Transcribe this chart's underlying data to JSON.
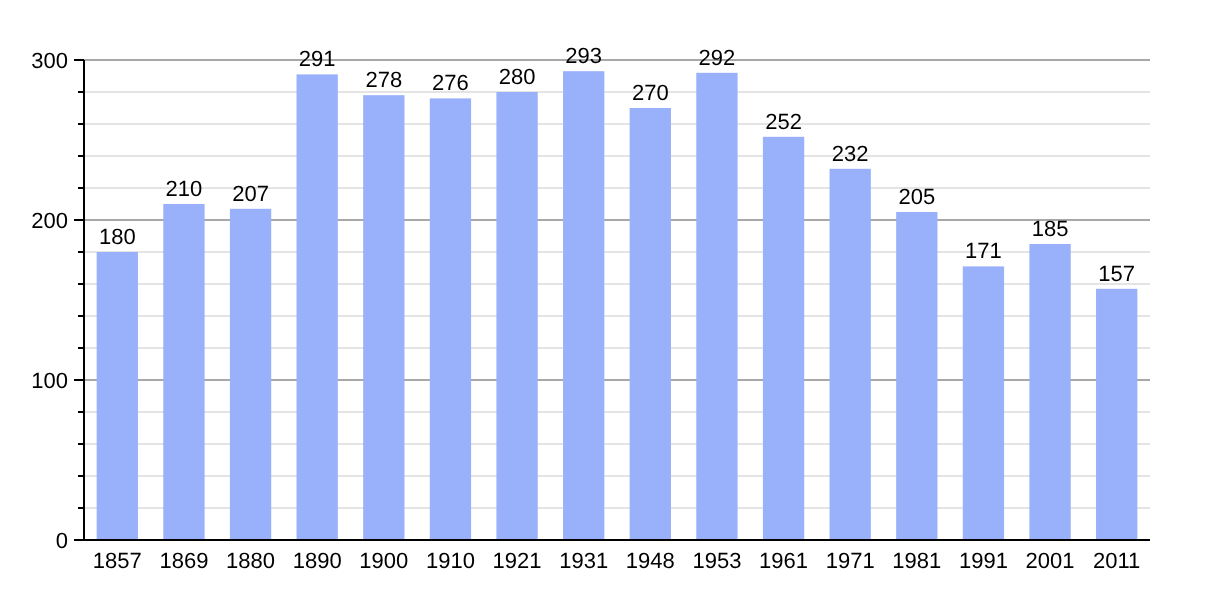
{
  "chart_data": {
    "type": "bar",
    "categories": [
      "1857",
      "1869",
      "1880",
      "1890",
      "1900",
      "1910",
      "1921",
      "1931",
      "1948",
      "1953",
      "1961",
      "1971",
      "1981",
      "1991",
      "2001",
      "2011"
    ],
    "values": [
      180,
      210,
      207,
      291,
      278,
      276,
      280,
      293,
      270,
      292,
      252,
      232,
      205,
      171,
      185,
      157
    ],
    "color": "#99b0fb",
    "ylim": [
      0,
      300
    ],
    "yticks": [
      0,
      {
        "value": 20,
        "label": null
      },
      {
        "value": 40,
        "label": null
      },
      {
        "value": 60,
        "label": null
      },
      {
        "value": 80,
        "label": null
      },
      100,
      {
        "value": 120,
        "label": null
      },
      {
        "value": 140,
        "label": null
      },
      {
        "value": 160,
        "label": null
      },
      {
        "value": 180,
        "label": null
      },
      200,
      {
        "value": 220,
        "label": null
      },
      {
        "value": 240,
        "label": null
      },
      {
        "value": 260,
        "label": null
      },
      {
        "value": 280,
        "label": null
      },
      300
    ],
    "grid": "y",
    "data_labels": true
  }
}
